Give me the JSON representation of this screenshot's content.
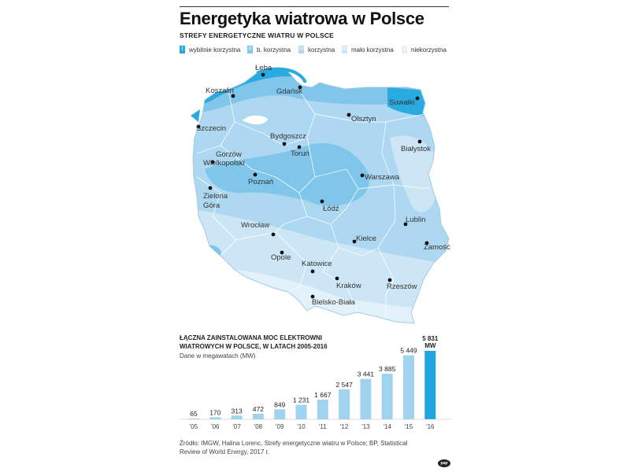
{
  "title": "Energetyka wiatrowa w Polsce",
  "map_title": "STREFY ENERGETYCZNE WIATRU W POLSCE",
  "legend": [
    {
      "numeral": "I",
      "label": "wybitnie korzystna",
      "color": "#29abe2"
    },
    {
      "numeral": "II",
      "label": "b. korzystna",
      "color": "#80c5ea"
    },
    {
      "numeral": "III",
      "label": "korzystna",
      "color": "#aed8f1"
    },
    {
      "numeral": "IV",
      "label": "mało korzystna",
      "color": "#cce6f6"
    },
    {
      "numeral": "V",
      "label": "niekorzystna",
      "color": "#e3f1fa"
    }
  ],
  "cities": [
    "Łeba",
    "Koszalin",
    "Gdańsk",
    "Suwałki",
    "Szczecin",
    "Olsztyn",
    "Bydgoszcz",
    "Toruń",
    "Białystok",
    "Gorzów Wielkopolski",
    "Poznań",
    "Warszawa",
    "Zielona Góra",
    "Łódź",
    "Lublin",
    "Wrocław",
    "Kielce",
    "Zamość",
    "Opole",
    "Katowice",
    "Kraków",
    "Rzeszów",
    "Bielsko-Biała"
  ],
  "chart_data": {
    "type": "bar",
    "title": "ŁĄCZNA ZAINSTALOWANA MOC ELEKTROWNI WIATROWYCH W POLSCE, W LATACH 2005-2016",
    "subtitle": "Dane w megawatach (MW)",
    "categories": [
      "'05",
      "'06",
      "'07",
      "'08",
      "'09",
      "'10",
      "'11",
      "'12",
      "'13",
      "'14",
      "'15",
      "'16"
    ],
    "values": [
      65,
      170,
      313,
      472,
      849,
      1231,
      1667,
      2547,
      3441,
      3885,
      5449,
      5831
    ],
    "value_labels": [
      "65",
      "170",
      "313",
      "472",
      "849",
      "1 231",
      "1 667",
      "2 547",
      "3 441",
      "3 885",
      "5 449",
      "5 831"
    ],
    "last_unit": "MW",
    "bar_color": "#9fd3ef",
    "highlight_color": "#1ea6df",
    "ylim": [
      0,
      5831
    ]
  },
  "source": "Źródło: IMGW, Halina Lorenc, Strefy energetyczne wiatru w Polsce; BP, Statistical Review of World Energy, 2017 r.",
  "logo": "pap"
}
